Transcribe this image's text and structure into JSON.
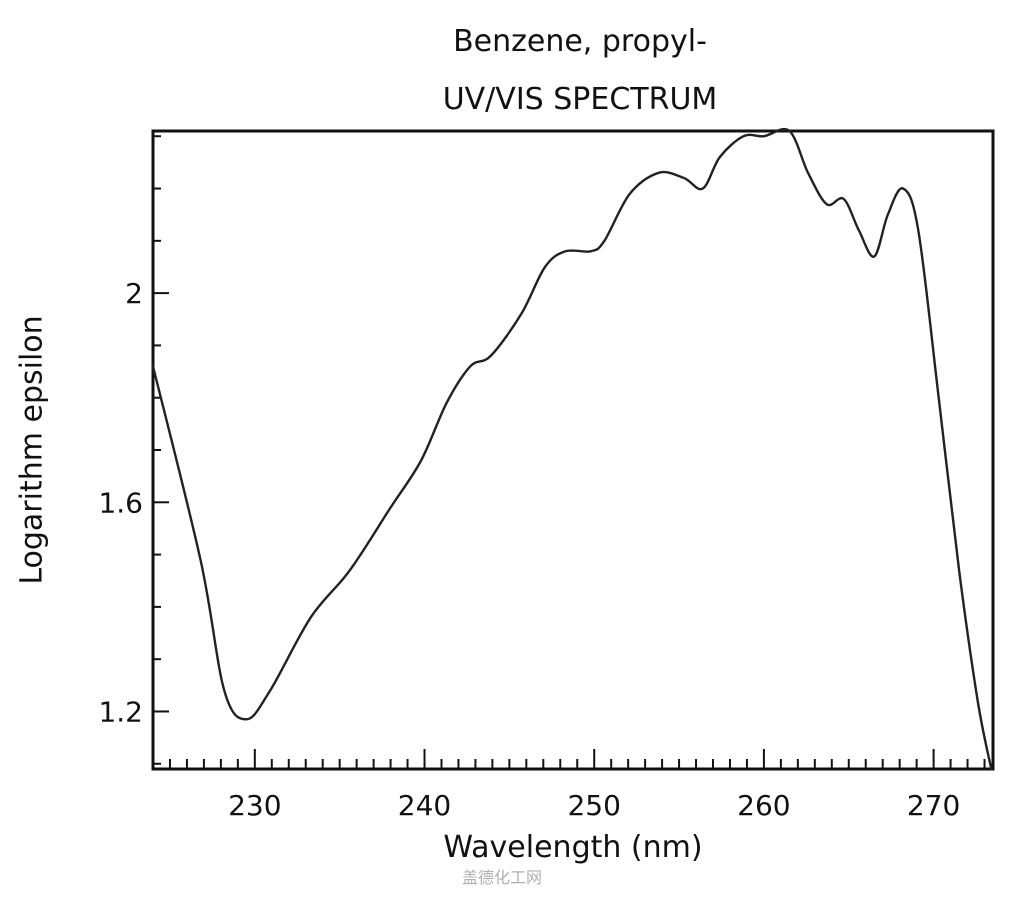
{
  "chart_data": {
    "type": "line",
    "title": "Benzene, propyl-",
    "subtitle": "UV/VIS SPECTRUM",
    "xlabel": "Wavelength (nm)",
    "ylabel": "Logarithm epsilon",
    "xlim": [
      224.0,
      273.5
    ],
    "ylim": [
      1.09,
      2.31
    ],
    "x_ticks": [
      230,
      240,
      250,
      260,
      270
    ],
    "x_tick_labels": [
      "230",
      "240",
      "250",
      "260",
      "270"
    ],
    "x_minor_step": 1,
    "y_ticks": [
      1.2,
      1.6,
      2.0
    ],
    "y_tick_labels": [
      "1.2",
      "1.6",
      "2"
    ],
    "y_minor_step": 0.1,
    "grid": false,
    "legend": null,
    "series": [
      {
        "name": "Benzene, propyl-",
        "color": "#222222",
        "x": [
          224.0,
          226.8,
          228.2,
          229.5,
          230.9,
          233.3,
          235.6,
          238.0,
          239.8,
          241.3,
          242.7,
          243.9,
          245.7,
          247.1,
          248.3,
          249.8,
          250.6,
          252.1,
          253.8,
          255.3,
          256.4,
          257.4,
          258.8,
          260.0,
          261.5,
          262.6,
          263.7,
          264.7,
          265.6,
          266.5,
          267.3,
          268.2,
          269.1,
          270.3,
          271.5,
          272.6,
          273.4
        ],
        "y": [
          1.86,
          1.49,
          1.24,
          1.185,
          1.24,
          1.38,
          1.47,
          1.59,
          1.68,
          1.79,
          1.86,
          1.88,
          1.96,
          2.05,
          2.08,
          2.08,
          2.1,
          2.19,
          2.23,
          2.22,
          2.2,
          2.26,
          2.3,
          2.3,
          2.31,
          2.23,
          2.17,
          2.18,
          2.12,
          2.07,
          2.15,
          2.2,
          2.12,
          1.8,
          1.47,
          1.22,
          1.09
        ]
      }
    ]
  },
  "watermark": "盖德化工网"
}
